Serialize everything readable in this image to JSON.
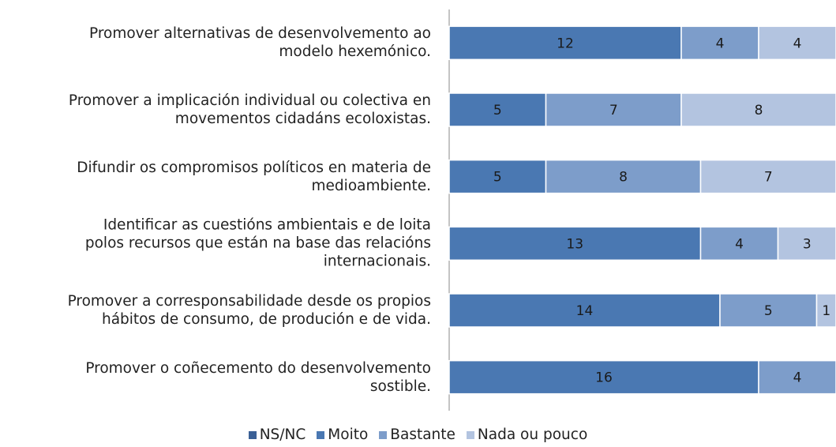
{
  "chart_data": {
    "type": "stacked-bar-horizontal",
    "categories": [
      "Promover alternativas de desenvolvemento ao\nmodelo hexemónico.",
      "Promover a implicación individual ou colectiva en\nmovementos cidadáns ecoloxistas.",
      "Difundir os compromisos políticos en materia de\nmedioambiente.",
      "Identificar as cuestións ambientais e de loita\npolos recursos que están na base das relacións\ninternacionais.",
      "Promover a corresponsabilidade desde os propios\nhábitos de consumo, de produción e de vida.",
      "Promover o coñecemento do desenvolvemento\nsostible."
    ],
    "series": [
      {
        "name": "NS/NC",
        "color": "#3b6096",
        "values": [
          0,
          0,
          0,
          0,
          0,
          0
        ]
      },
      {
        "name": "Moito",
        "color": "#4a78b2",
        "values": [
          12,
          5,
          5,
          13,
          14,
          16
        ]
      },
      {
        "name": "Bastante",
        "color": "#7d9dca",
        "values": [
          4,
          7,
          8,
          4,
          5,
          4
        ]
      },
      {
        "name": "Nada ou pouco",
        "color": "#b3c4e0",
        "values": [
          4,
          8,
          7,
          3,
          1,
          0
        ]
      }
    ],
    "xlim": [
      0,
      20
    ]
  }
}
